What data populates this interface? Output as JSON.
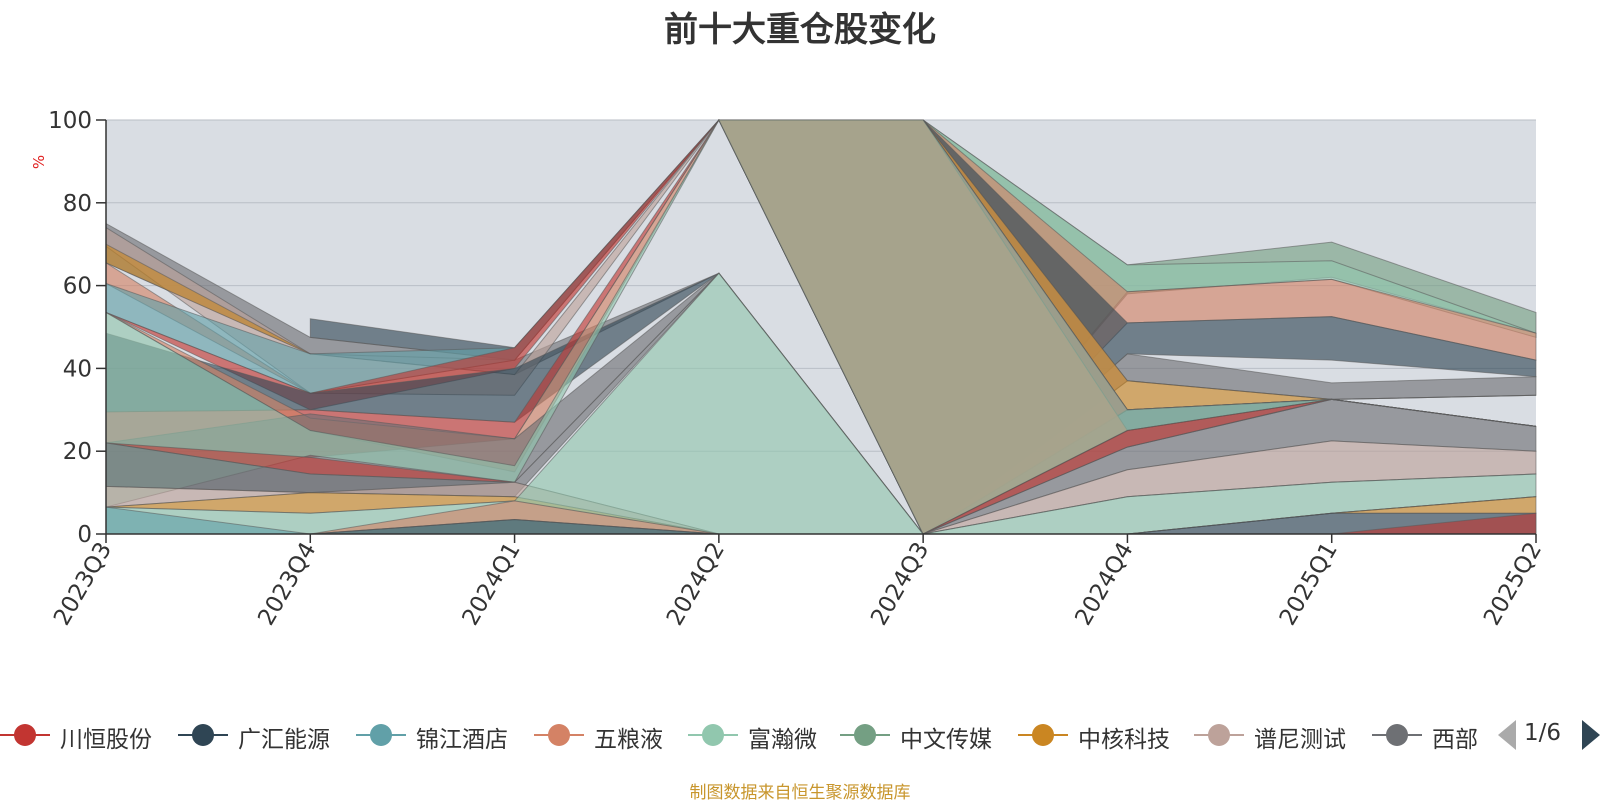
{
  "title": "前十大重仓股变化",
  "source": "制图数据来自恒生聚源数据库",
  "pager": "1/6",
  "chart_data": {
    "type": "area",
    "stacked": false,
    "title": "前十大重仓股变化",
    "ylabel": "%",
    "ylim": [
      0,
      100
    ],
    "yticks": [
      0,
      20,
      40,
      60,
      80,
      100
    ],
    "categories": [
      "2023Q3",
      "2023Q4",
      "2024Q1",
      "2024Q2",
      "2024Q3",
      "2024Q4",
      "2025Q1",
      "2025Q2"
    ],
    "grid": true,
    "legend_position": "bottom",
    "plot_background": "#d9dde3",
    "legend": [
      {
        "name": "川恒股份",
        "color": "#c23531"
      },
      {
        "name": "广汇能源",
        "color": "#2f4554"
      },
      {
        "name": "锦江酒店",
        "color": "#61a0a8"
      },
      {
        "name": "五粮液",
        "color": "#d48265"
      },
      {
        "name": "富瀚微",
        "color": "#91c7ae"
      },
      {
        "name": "中文传媒",
        "color": "#749f83"
      },
      {
        "name": "中核科技",
        "color": "#ca8622"
      },
      {
        "name": "谱尼测试",
        "color": "#bda29a"
      },
      {
        "name": "西部",
        "color": "#6e7074"
      }
    ],
    "bands": [
      {
        "color": "#749f83",
        "values": [
          null,
          null,
          null,
          100,
          100,
          65,
          70.5,
          53.5
        ],
        "lower": [
          null,
          null,
          null,
          100,
          0,
          58,
          62,
          48.5
        ]
      },
      {
        "color": "#91c7ae",
        "values": [
          null,
          null,
          null,
          100,
          100,
          65,
          66,
          48.5
        ],
        "lower": [
          null,
          null,
          null,
          100,
          0,
          58.5,
          61.5,
          47.5
        ]
      },
      {
        "color": "#d48265",
        "values": [
          null,
          null,
          null,
          100,
          100,
          58.5,
          61.5,
          48.5
        ],
        "lower": [
          null,
          null,
          null,
          100,
          0,
          51,
          52.5,
          42
        ]
      },
      {
        "color": "#2f4554",
        "values": [
          null,
          52,
          45,
          100,
          100,
          51,
          52.5,
          42
        ],
        "lower": [
          null,
          47.5,
          42,
          100,
          0,
          43.5,
          42,
          38
        ]
      },
      {
        "color": "#6e7074",
        "values": [
          75,
          47.5,
          42,
          63,
          0,
          43.5,
          36.5,
          38
        ],
        "lower": [
          65.5,
          43.5,
          38.5,
          63,
          0,
          37,
          32.5,
          33.5
        ]
      },
      {
        "color": "#bda29a",
        "values": [
          74,
          43.5,
          38.5,
          100,
          100,
          37,
          32.5,
          33.5
        ],
        "lower": [
          69.5,
          34,
          33.5,
          100,
          0,
          37,
          32.5,
          33.5
        ]
      },
      {
        "color": "#ca8622",
        "values": [
          70,
          43.5,
          42,
          100,
          100,
          37,
          32.5,
          33.5
        ],
        "lower": [
          65.5,
          43.5,
          42,
          100,
          0,
          30,
          32.5,
          33.5
        ]
      },
      {
        "color": "#d48265",
        "values": [
          65.5,
          34,
          42,
          100,
          100,
          30,
          32.5,
          26
        ],
        "lower": [
          60.5,
          34,
          42,
          100,
          0,
          30,
          32.5,
          26
        ]
      },
      {
        "color": "#61a0a8",
        "values": [
          60.5,
          43.5,
          45,
          100,
          100,
          30,
          32.5,
          26
        ],
        "lower": [
          53.5,
          34,
          42,
          100,
          0,
          30,
          32.5,
          26
        ]
      },
      {
        "color": "#c23531",
        "values": [
          53.5,
          34,
          45,
          100,
          100,
          30,
          32.5,
          26
        ],
        "lower": [
          53.5,
          30,
          40,
          100,
          0,
          30,
          32.5,
          26
        ]
      },
      {
        "color": "#2f4554",
        "values": [
          48.5,
          34,
          40,
          63,
          0,
          30,
          32.5,
          26
        ],
        "lower": [
          29.5,
          30,
          27,
          63,
          0,
          25,
          32.5,
          26
        ]
      },
      {
        "color": "#c23531",
        "values": [
          29.5,
          30,
          27,
          100,
          100,
          25,
          32.5,
          26
        ],
        "lower": [
          22,
          18.5,
          23,
          100,
          0,
          25,
          32.5,
          26
        ]
      },
      {
        "color": "#d48265",
        "values": [
          53.5,
          28,
          23,
          100,
          100,
          25,
          32.5,
          26
        ],
        "lower": [
          53.5,
          25,
          15,
          100,
          0,
          25,
          32.5,
          26
        ]
      },
      {
        "color": "#6e7074",
        "values": [
          22,
          29,
          23,
          63,
          0,
          25,
          32.5,
          26
        ],
        "lower": [
          11.5,
          10,
          12.5,
          63,
          0,
          21,
          32.5,
          26
        ]
      },
      {
        "color": "#91c7ae",
        "values": [
          53.5,
          25,
          16.5,
          100,
          100,
          30,
          32.5,
          26
        ],
        "lower": [
          6.5,
          19,
          12.5,
          100,
          0,
          25,
          32.5,
          26
        ]
      },
      {
        "color": "#c23531",
        "values": [
          22,
          18.5,
          12.5,
          0,
          0,
          25,
          32.5,
          26
        ],
        "lower": [
          22,
          14.5,
          12.5,
          0,
          0,
          21,
          32.5,
          26
        ]
      },
      {
        "color": "#6e7074",
        "values": [
          22,
          14.5,
          12.5,
          63,
          0,
          21,
          32.5,
          26
        ],
        "lower": [
          11.5,
          10,
          9,
          63,
          0,
          15.5,
          22.5,
          20
        ]
      },
      {
        "color": "#bda29a",
        "values": [
          11.5,
          10,
          12.5,
          0,
          0,
          15.5,
          22.5,
          20
        ],
        "lower": [
          6.5,
          10,
          9,
          0,
          0,
          9,
          12.5,
          14.5
        ]
      },
      {
        "color": "#ca8622",
        "values": [
          6.5,
          10,
          9,
          0,
          0,
          9,
          12.5,
          14.5
        ],
        "lower": [
          6.5,
          5,
          8,
          0,
          0,
          9,
          12.5,
          14.5
        ]
      },
      {
        "color": "#91c7ae",
        "values": [
          6.5,
          5,
          8,
          63,
          0,
          9,
          12.5,
          14.5
        ],
        "lower": [
          0,
          0,
          0,
          0,
          0,
          0,
          5,
          9
        ]
      },
      {
        "color": "#61a0a8",
        "values": [
          6.5,
          0,
          0,
          0,
          0,
          0,
          5,
          9
        ],
        "lower": [
          0,
          0,
          0,
          0,
          0,
          0,
          5,
          9
        ]
      },
      {
        "color": "#d48265",
        "values": [
          0,
          0,
          8,
          0,
          0,
          0,
          5,
          9
        ],
        "lower": [
          0,
          0,
          3.5,
          0,
          0,
          0,
          5,
          9
        ]
      },
      {
        "color": "#ca8622",
        "values": [
          0,
          0,
          3.5,
          0,
          0,
          0,
          5,
          9
        ],
        "lower": [
          0,
          0,
          3.5,
          0,
          0,
          0,
          5,
          5
        ]
      },
      {
        "color": "#2f4554",
        "values": [
          0,
          0,
          3.5,
          0,
          0,
          0,
          5,
          5
        ],
        "lower": [
          0,
          0,
          0,
          0,
          0,
          0,
          0,
          0
        ]
      },
      {
        "color": "#c23531",
        "values": [
          0,
          0,
          0,
          0,
          0,
          0,
          0,
          5
        ],
        "lower": [
          0,
          0,
          0,
          0,
          0,
          0,
          0,
          0
        ]
      }
    ]
  }
}
